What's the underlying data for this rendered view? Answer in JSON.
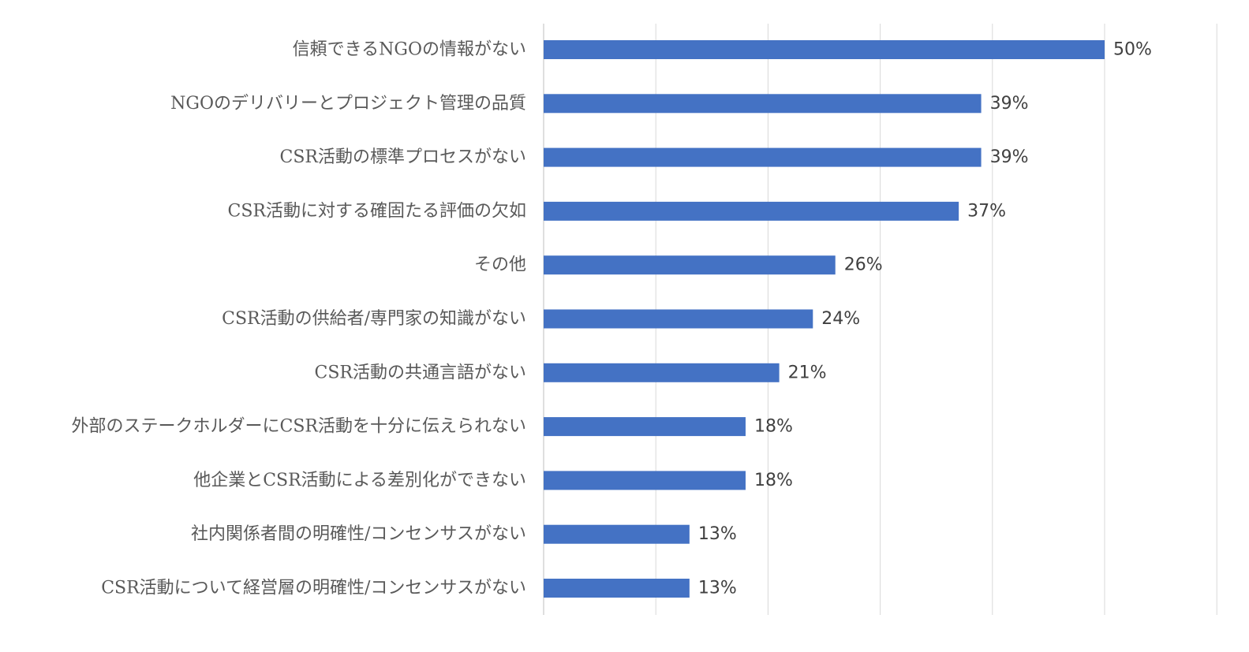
{
  "chart_data": {
    "type": "bar",
    "orientation": "horizontal",
    "categories": [
      "信頼できるNGOの情報がない",
      "NGOのデリバリーとプロジェクト管理の品質",
      "CSR活動の標準プロセスがない",
      "CSR活動に対する確固たる評価の欠如",
      "その他",
      "CSR活動の供給者/専門家の知識がない",
      "CSR活動の共通言語がない",
      "外部のステークホルダーにCSR活動を十分に伝えられない",
      "他企業とCSR活動による差別化ができない",
      "社内関係者間の明確性/コンセンサスがない",
      "CSR活動について経営層の明確性/コンセンサスがない"
    ],
    "values": [
      50,
      39,
      39,
      37,
      26,
      24,
      21,
      18,
      18,
      13,
      13
    ],
    "value_labels": [
      "50%",
      "39%",
      "39%",
      "37%",
      "26%",
      "24%",
      "21%",
      "18%",
      "18%",
      "13%",
      "13%"
    ],
    "xlim": [
      0,
      60
    ],
    "grid": true,
    "legend": "none",
    "bar_color": "#4472c4"
  }
}
